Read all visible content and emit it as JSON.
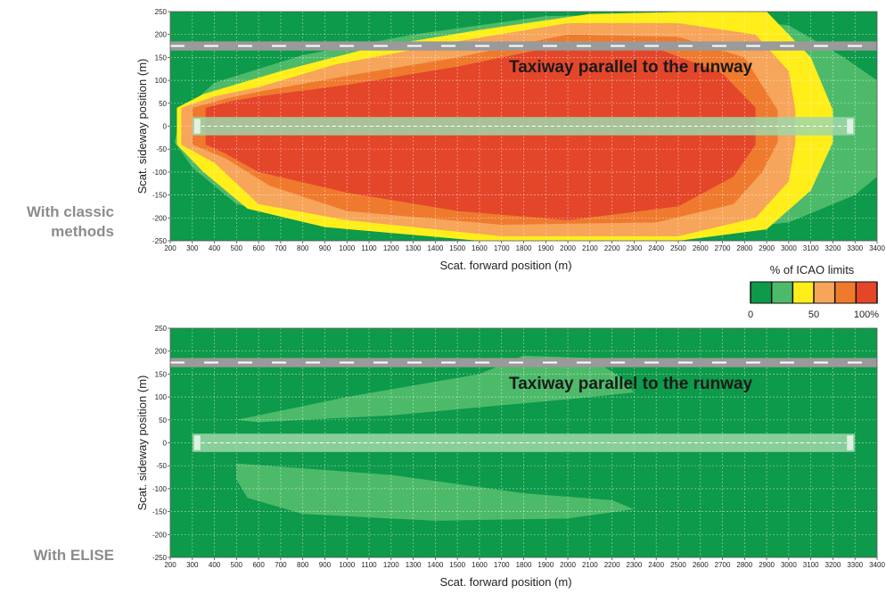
{
  "labels": {
    "plot1_side": "With classic\nmethods",
    "plot2_side": "With ELISE",
    "taxiway": "Taxiway parallel to the runway"
  },
  "legend": {
    "title": "% of ICAO limits",
    "ticks": [
      {
        "value": 0,
        "label": "0"
      },
      {
        "value": 50,
        "label": "50"
      },
      {
        "value": 100,
        "label": "100%"
      }
    ],
    "colors": [
      "#0d9a4a",
      "#4dba6a",
      "#ffee1a",
      "#f6a55a",
      "#ef7a2e",
      "#e4462a"
    ]
  },
  "chart_data": [
    {
      "type": "heatmap",
      "title": "",
      "xlabel": "Scat. forward position (m)",
      "ylabel": "Scat. sideway position (m)",
      "xlim": [
        200,
        3400
      ],
      "ylim": [
        -250,
        250
      ],
      "xticks": [
        200,
        300,
        400,
        500,
        600,
        700,
        800,
        900,
        1000,
        1100,
        1200,
        1300,
        1400,
        1500,
        1600,
        1700,
        1800,
        1900,
        2000,
        2100,
        2200,
        2300,
        2400,
        2500,
        2600,
        2700,
        2800,
        2900,
        3000,
        3100,
        3200,
        3300,
        3400
      ],
      "yticks": [
        -250,
        -200,
        -150,
        -100,
        -50,
        0,
        50,
        100,
        150,
        200,
        250
      ],
      "grid": true,
      "runway": {
        "x": [
          300,
          3300
        ],
        "y": [
          -20,
          20
        ]
      },
      "taxiway": {
        "x": [
          200,
          3400
        ],
        "y": [
          165,
          185
        ]
      },
      "regions": [
        {
          "level": 1,
          "pct_range": "17-33",
          "color": "#4dba6a",
          "points": [
            [
              250,
              30
            ],
            [
              400,
              95
            ],
            [
              800,
              155
            ],
            [
              1300,
              200
            ],
            [
              1900,
              240
            ],
            [
              2500,
              245
            ],
            [
              3000,
              220
            ],
            [
              3250,
              150
            ],
            [
              3400,
              100
            ],
            [
              3400,
              -110
            ],
            [
              3300,
              -150
            ],
            [
              3000,
              -210
            ],
            [
              2300,
              -245
            ],
            [
              1600,
              -245
            ],
            [
              900,
              -215
            ],
            [
              500,
              -170
            ],
            [
              300,
              -90
            ],
            [
              220,
              -35
            ]
          ]
        },
        {
          "level": 2,
          "pct_range": "33-50",
          "color": "#ffee1a",
          "points": [
            [
              230,
              40
            ],
            [
              350,
              70
            ],
            [
              700,
              120
            ],
            [
              1100,
              170
            ],
            [
              1600,
              210
            ],
            [
              2100,
              245
            ],
            [
              2600,
              250
            ],
            [
              2900,
              250
            ],
            [
              3100,
              150
            ],
            [
              3200,
              35
            ],
            [
              3200,
              -35
            ],
            [
              3100,
              -140
            ],
            [
              2900,
              -225
            ],
            [
              2500,
              -250
            ],
            [
              1600,
              -250
            ],
            [
              900,
              -220
            ],
            [
              550,
              -180
            ],
            [
              350,
              -100
            ],
            [
              230,
              -40
            ]
          ]
        },
        {
          "level": 3,
          "pct_range": "50-67",
          "color": "#f6a55a",
          "points": [
            [
              250,
              40
            ],
            [
              400,
              65
            ],
            [
              600,
              85
            ],
            [
              950,
              135
            ],
            [
              1500,
              185
            ],
            [
              2000,
              225
            ],
            [
              2500,
              225
            ],
            [
              2850,
              200
            ],
            [
              3000,
              120
            ],
            [
              3030,
              35
            ],
            [
              3030,
              -35
            ],
            [
              3000,
              -120
            ],
            [
              2850,
              -200
            ],
            [
              2500,
              -240
            ],
            [
              1700,
              -240
            ],
            [
              1000,
              -205
            ],
            [
              600,
              -170
            ],
            [
              400,
              -80
            ],
            [
              250,
              -40
            ]
          ]
        },
        {
          "level": 4,
          "pct_range": "67-83",
          "color": "#ef7a2e",
          "points": [
            [
              300,
              40
            ],
            [
              450,
              60
            ],
            [
              600,
              75
            ],
            [
              1000,
              110
            ],
            [
              1500,
              150
            ],
            [
              2000,
              200
            ],
            [
              2500,
              195
            ],
            [
              2800,
              150
            ],
            [
              2950,
              35
            ],
            [
              2950,
              -35
            ],
            [
              2880,
              -100
            ],
            [
              2750,
              -170
            ],
            [
              2400,
              -210
            ],
            [
              1700,
              -215
            ],
            [
              1000,
              -185
            ],
            [
              650,
              -130
            ],
            [
              450,
              -70
            ],
            [
              300,
              -40
            ]
          ]
        },
        {
          "level": 5,
          "pct_range": "83-100",
          "color": "#e4462a",
          "points": [
            [
              360,
              40
            ],
            [
              480,
              55
            ],
            [
              600,
              65
            ],
            [
              1000,
              90
            ],
            [
              1500,
              130
            ],
            [
              2000,
              180
            ],
            [
              2400,
              170
            ],
            [
              2700,
              115
            ],
            [
              2850,
              40
            ],
            [
              2850,
              -40
            ],
            [
              2750,
              -110
            ],
            [
              2500,
              -175
            ],
            [
              2000,
              -205
            ],
            [
              1500,
              -185
            ],
            [
              1000,
              -145
            ],
            [
              600,
              -100
            ],
            [
              450,
              -60
            ],
            [
              360,
              -40
            ]
          ]
        }
      ]
    },
    {
      "type": "heatmap",
      "title": "",
      "xlabel": "Scat. forward position (m)",
      "ylabel": "Scat. sideway position (m)",
      "xlim": [
        200,
        3400
      ],
      "ylim": [
        -250,
        250
      ],
      "xticks": [
        200,
        300,
        400,
        500,
        600,
        700,
        800,
        900,
        1000,
        1100,
        1200,
        1300,
        1400,
        1500,
        1600,
        1700,
        1800,
        1900,
        2000,
        2100,
        2200,
        2300,
        2400,
        2500,
        2600,
        2700,
        2800,
        2900,
        3000,
        3100,
        3200,
        3300,
        3400
      ],
      "yticks": [
        -250,
        -200,
        -150,
        -100,
        -50,
        0,
        50,
        100,
        150,
        200,
        250
      ],
      "grid": true,
      "runway": {
        "x": [
          300,
          3300
        ],
        "y": [
          -20,
          20
        ]
      },
      "taxiway": {
        "x": [
          200,
          3400
        ],
        "y": [
          165,
          185
        ]
      },
      "regions": [
        {
          "level": 1,
          "pct_range": "17-33",
          "color": "#4dba6a",
          "points": [
            [
              500,
              50
            ],
            [
              1000,
              100
            ],
            [
              1600,
              150
            ],
            [
              1800,
              190
            ],
            [
              2100,
              185
            ],
            [
              2250,
              140
            ],
            [
              2300,
              110
            ],
            [
              2000,
              95
            ],
            [
              1200,
              60
            ],
            [
              600,
              45
            ]
          ]
        },
        {
          "level": 1,
          "pct_range": "17-33",
          "color": "#4dba6a",
          "points": [
            [
              500,
              -45
            ],
            [
              1200,
              -70
            ],
            [
              1800,
              -110
            ],
            [
              2200,
              -125
            ],
            [
              2300,
              -145
            ],
            [
              2000,
              -165
            ],
            [
              1400,
              -170
            ],
            [
              800,
              -155
            ],
            [
              550,
              -120
            ],
            [
              500,
              -80
            ]
          ]
        }
      ]
    }
  ]
}
